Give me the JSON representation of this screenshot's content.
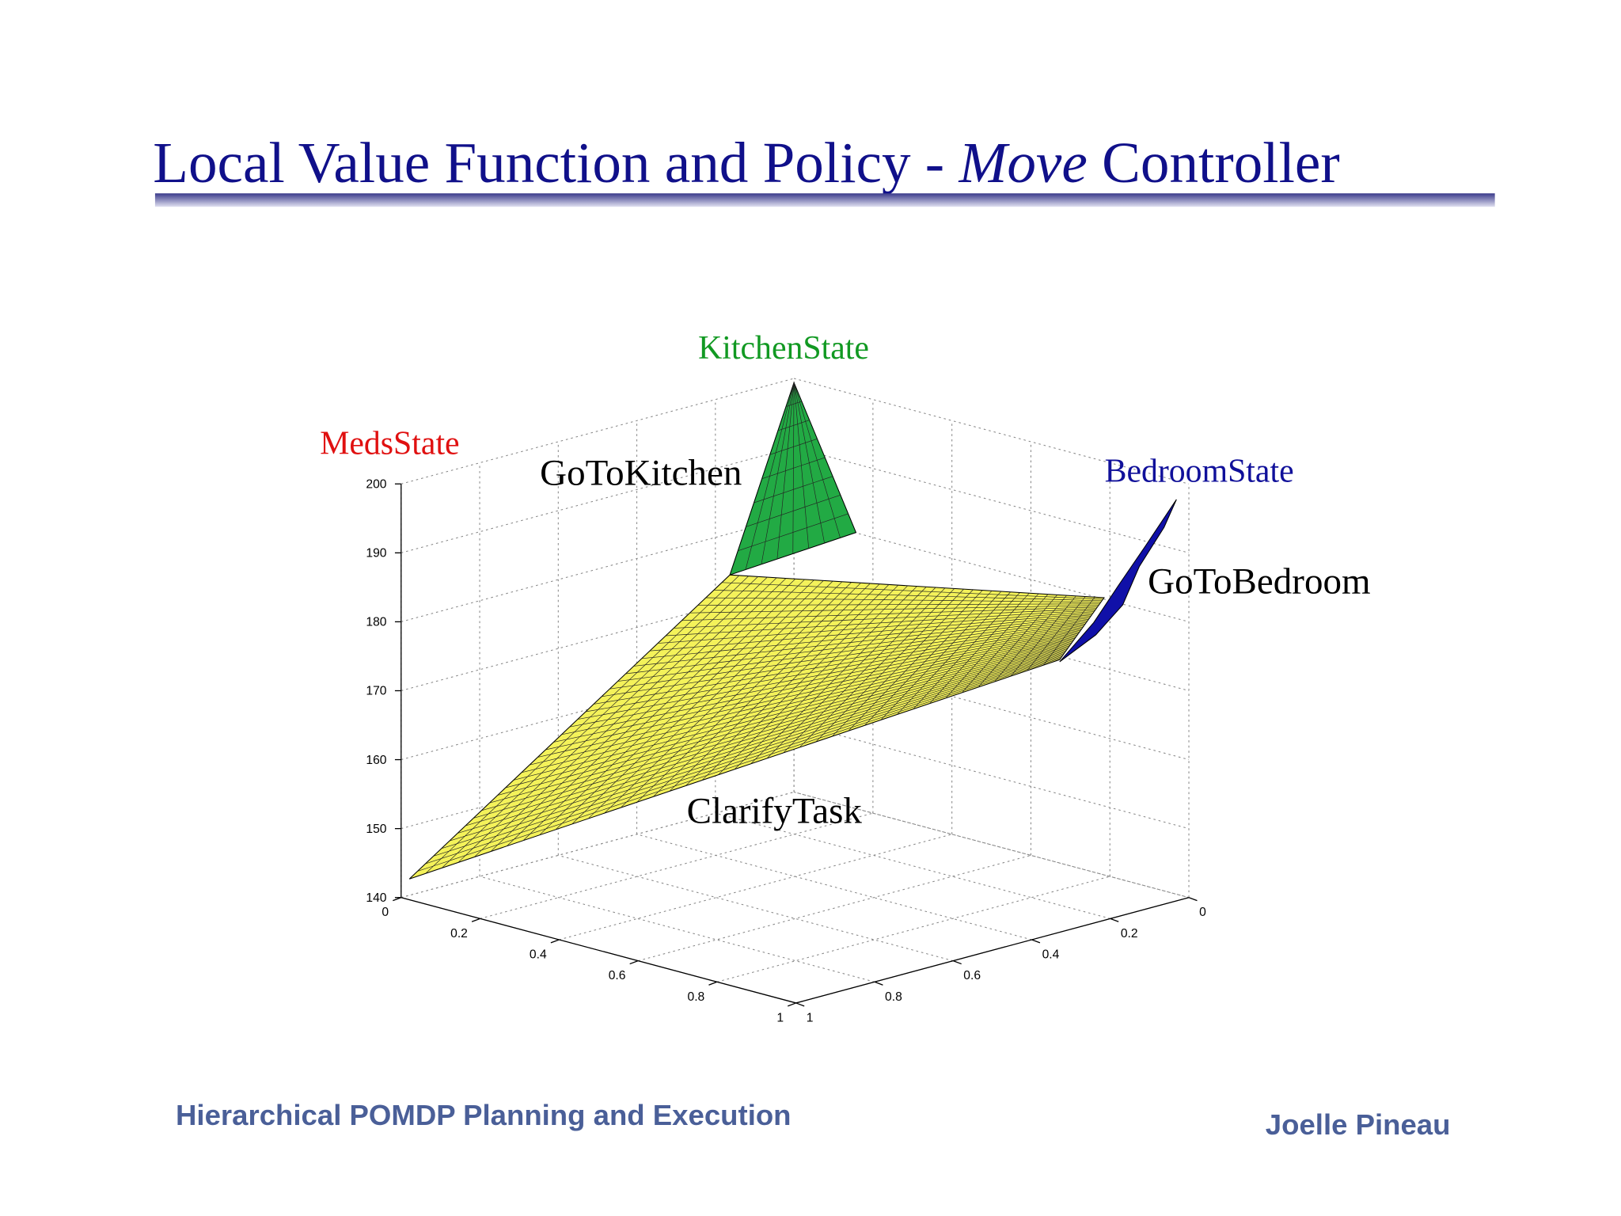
{
  "header": {
    "title": {
      "before": "Local Value Function and Policy - ",
      "emphasis": "Move",
      "after": " Controller"
    }
  },
  "figure": {
    "labels": {
      "meds_state": "MedsState",
      "kitchen_state": "KitchenState",
      "bedroom_state": "BedroomState",
      "go_to_kitchen": "GoToKitchen",
      "go_to_bedroom": "GoToBedroom",
      "clarify_task": "ClarifyTask"
    },
    "z_ticks": [
      140,
      150,
      160,
      170,
      180,
      190,
      200
    ],
    "left_ticks": [
      0,
      0.2,
      0.4,
      0.6,
      0.8,
      1
    ],
    "right_ticks": [
      0,
      0.2,
      0.4,
      0.6,
      0.8,
      1
    ]
  },
  "footer": {
    "left": "Hierarchical POMDP Planning and Execution",
    "right": "Joelle Pineau"
  }
}
